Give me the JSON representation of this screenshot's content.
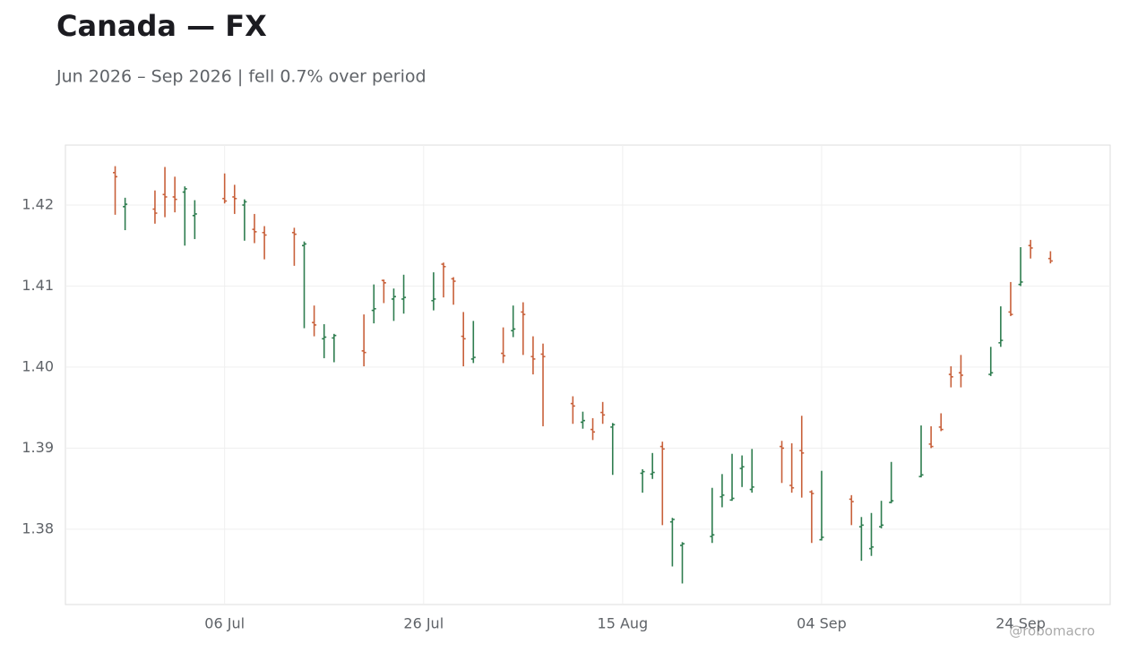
{
  "chart_data": {
    "type": "ohlc",
    "title": "Canada — FX",
    "subtitle": "Jun 2026 – Sep 2026 | fell 0.7% over period",
    "watermark": "@robomacro",
    "up_color": "#2e7d4f",
    "down_color": "#c8603a",
    "grid": true,
    "xlim": [
      "2026-06-20",
      "2026-10-03"
    ],
    "xticks": [
      {
        "value": "2026-07-06",
        "label": "06 Jul"
      },
      {
        "value": "2026-07-26",
        "label": "26 Jul"
      },
      {
        "value": "2026-08-15",
        "label": "15 Aug"
      },
      {
        "value": "2026-09-04",
        "label": "04 Sep"
      },
      {
        "value": "2026-09-24",
        "label": "24 Sep"
      }
    ],
    "ylim": [
      1.3707,
      1.4274
    ],
    "yticks": [
      {
        "value": 1.38,
        "label": "1.38"
      },
      {
        "value": 1.39,
        "label": "1.39"
      },
      {
        "value": 1.4,
        "label": "1.40"
      },
      {
        "value": 1.41,
        "label": "1.41"
      },
      {
        "value": 1.42,
        "label": "1.42"
      }
    ],
    "x": [
      "2026-06-25",
      "2026-06-26",
      "2026-06-29",
      "2026-06-30",
      "2026-07-01",
      "2026-07-02",
      "2026-07-03",
      "2026-07-06",
      "2026-07-07",
      "2026-07-08",
      "2026-07-09",
      "2026-07-10",
      "2026-07-13",
      "2026-07-14",
      "2026-07-15",
      "2026-07-16",
      "2026-07-17",
      "2026-07-20",
      "2026-07-21",
      "2026-07-22",
      "2026-07-23",
      "2026-07-24",
      "2026-07-27",
      "2026-07-28",
      "2026-07-29",
      "2026-07-30",
      "2026-07-31",
      "2026-08-03",
      "2026-08-04",
      "2026-08-05",
      "2026-08-06",
      "2026-08-07",
      "2026-08-10",
      "2026-08-11",
      "2026-08-12",
      "2026-08-13",
      "2026-08-14",
      "2026-08-17",
      "2026-08-18",
      "2026-08-19",
      "2026-08-20",
      "2026-08-21",
      "2026-08-24",
      "2026-08-25",
      "2026-08-26",
      "2026-08-27",
      "2026-08-28",
      "2026-08-31",
      "2026-09-01",
      "2026-09-02",
      "2026-09-03",
      "2026-09-04",
      "2026-09-07",
      "2026-09-08",
      "2026-09-09",
      "2026-09-10",
      "2026-09-11",
      "2026-09-14",
      "2026-09-15",
      "2026-09-16",
      "2026-09-17",
      "2026-09-18",
      "2026-09-21",
      "2026-09-22",
      "2026-09-23",
      "2026-09-24",
      "2026-09-25",
      "2026-09-27"
    ],
    "open": [
      1.424,
      1.4198,
      1.4195,
      1.4213,
      1.421,
      1.4216,
      1.4187,
      1.4208,
      1.421,
      1.42,
      1.417,
      1.4166,
      1.4166,
      1.415,
      1.4055,
      1.4035,
      1.4036,
      1.402,
      1.407,
      1.4107,
      1.4084,
      1.4084,
      1.4082,
      1.4127,
      1.4109,
      1.4038,
      1.401,
      1.4017,
      1.4045,
      1.4068,
      1.4013,
      1.4016,
      1.3955,
      1.3932,
      1.3923,
      1.3944,
      1.3926,
      1.3869,
      1.3868,
      1.3902,
      1.3809,
      1.378,
      1.3791,
      1.384,
      1.3836,
      1.3875,
      1.3849,
      1.3902,
      1.3854,
      1.3897,
      1.3846,
      1.3787,
      1.3837,
      1.3803,
      1.3776,
      1.3803,
      1.3833,
      1.3865,
      1.3905,
      1.3926,
      1.3991,
      1.3993,
      1.3991,
      1.403,
      1.4068,
      1.4102,
      1.415,
      1.4134
    ],
    "high": [
      1.4248,
      1.4209,
      1.4218,
      1.4247,
      1.4235,
      1.4223,
      1.4206,
      1.4239,
      1.4225,
      1.4207,
      1.4189,
      1.4174,
      1.4172,
      1.4155,
      1.4076,
      1.4053,
      1.4041,
      1.4065,
      1.4102,
      1.4108,
      1.4097,
      1.4114,
      1.4117,
      1.4129,
      1.4111,
      1.4068,
      1.4057,
      1.4049,
      1.4076,
      1.408,
      1.4038,
      1.4029,
      1.3964,
      1.3945,
      1.3937,
      1.3957,
      1.3931,
      1.3874,
      1.3894,
      1.3908,
      1.3814,
      1.3784,
      1.3851,
      1.3868,
      1.3893,
      1.3891,
      1.3899,
      1.3909,
      1.3906,
      1.394,
      1.3848,
      1.3872,
      1.3842,
      1.3815,
      1.382,
      1.3835,
      1.3883,
      1.3928,
      1.3927,
      1.3943,
      1.4001,
      1.4015,
      1.4025,
      1.4075,
      1.4105,
      1.4148,
      1.4157,
      1.4143
    ],
    "low": [
      1.4188,
      1.4169,
      1.4177,
      1.4185,
      1.4191,
      1.415,
      1.4158,
      1.4202,
      1.4189,
      1.4156,
      1.4153,
      1.4133,
      1.4125,
      1.4048,
      1.4038,
      1.4011,
      1.4006,
      1.4001,
      1.4054,
      1.4079,
      1.4057,
      1.4066,
      1.407,
      1.4086,
      1.4077,
      1.4001,
      1.4005,
      1.4005,
      1.4037,
      1.4015,
      1.3991,
      1.3927,
      1.393,
      1.3924,
      1.391,
      1.393,
      1.3867,
      1.3845,
      1.3862,
      1.3805,
      1.3754,
      1.3733,
      1.3783,
      1.3827,
      1.3835,
      1.3852,
      1.3845,
      1.3857,
      1.3845,
      1.3839,
      1.3783,
      1.3786,
      1.3805,
      1.3761,
      1.3767,
      1.3801,
      1.3832,
      1.3864,
      1.39,
      1.3921,
      1.3975,
      1.3975,
      1.3989,
      1.4025,
      1.4063,
      1.41,
      1.4134,
      1.4128
    ],
    "close": [
      1.4235,
      1.4201,
      1.419,
      1.421,
      1.4207,
      1.422,
      1.4189,
      1.4205,
      1.4208,
      1.4204,
      1.4167,
      1.4163,
      1.4164,
      1.4152,
      1.4052,
      1.4037,
      1.4039,
      1.4018,
      1.4072,
      1.4104,
      1.4087,
      1.4086,
      1.4084,
      1.4124,
      1.4106,
      1.4035,
      1.4012,
      1.4014,
      1.4047,
      1.4065,
      1.401,
      1.4013,
      1.3952,
      1.3934,
      1.392,
      1.3941,
      1.3929,
      1.3871,
      1.387,
      1.3899,
      1.3812,
      1.3782,
      1.3793,
      1.3842,
      1.3838,
      1.3877,
      1.3852,
      1.39,
      1.3851,
      1.3894,
      1.3844,
      1.379,
      1.3834,
      1.3805,
      1.3778,
      1.3805,
      1.3835,
      1.3867,
      1.3902,
      1.3923,
      1.3988,
      1.399,
      1.3993,
      1.4033,
      1.4065,
      1.4105,
      1.4147,
      1.4131
    ]
  }
}
